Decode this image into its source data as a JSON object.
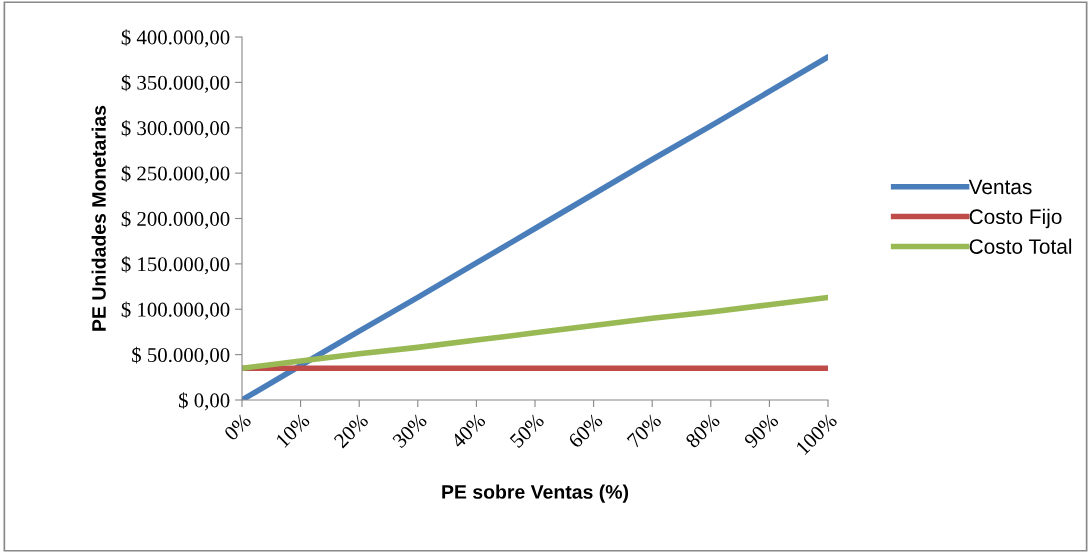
{
  "chart_data": {
    "type": "line",
    "xlabel": "PE sobre Ventas (%)",
    "ylabel": "PE Unidades Monetarias",
    "categories": [
      "0%",
      "10%",
      "20%",
      "30%",
      "40%",
      "50%",
      "60%",
      "70%",
      "80%",
      "90%",
      "100%"
    ],
    "series": [
      {
        "name": "Ventas",
        "color": "#4a7ebb",
        "values": [
          0,
          38000,
          76000,
          113000,
          151000,
          189000,
          227000,
          265000,
          302000,
          340000,
          378000
        ]
      },
      {
        "name": "Costo Fijo",
        "color": "#be4b48",
        "values": [
          35000,
          35000,
          35000,
          35000,
          35000,
          35000,
          35000,
          35000,
          35000,
          35000,
          35000
        ]
      },
      {
        "name": "Costo Total",
        "color": "#98b954",
        "values": [
          35000,
          43000,
          51000,
          58000,
          66000,
          74000,
          82000,
          90000,
          97000,
          105000,
          113000
        ]
      }
    ],
    "ylim": [
      0,
      400000
    ],
    "yticks": [
      {
        "value": 0,
        "label": "$ 0,00"
      },
      {
        "value": 50000,
        "label": "$ 50.000,00"
      },
      {
        "value": 100000,
        "label": "$ 100.000,00"
      },
      {
        "value": 150000,
        "label": "$ 150.000,00"
      },
      {
        "value": 200000,
        "label": "$ 200.000,00"
      },
      {
        "value": 250000,
        "label": "$ 250.000,00"
      },
      {
        "value": 300000,
        "label": "$ 300.000,00"
      },
      {
        "value": 350000,
        "label": "$ 350.000,00"
      },
      {
        "value": 400000,
        "label": "$ 400.000,00"
      }
    ],
    "grid": false,
    "legend": "right",
    "marker": "none",
    "line_style": "solid"
  }
}
